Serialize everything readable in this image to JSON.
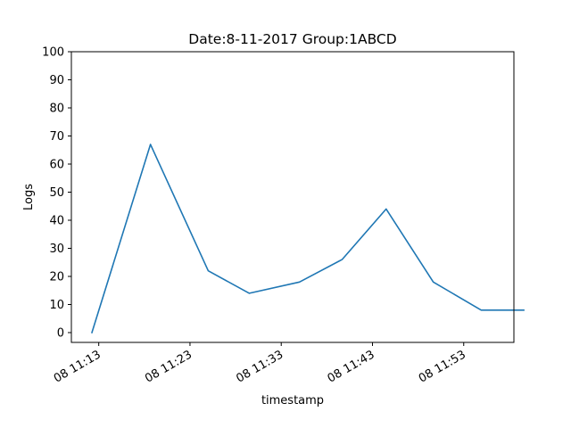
{
  "chart_data": {
    "type": "line",
    "title": "Date:8-11-2017  Group:1ABCD",
    "xlabel": "timestamp",
    "ylabel": "Logs",
    "ylim": [
      0,
      100
    ],
    "y_ticks": [
      0,
      10,
      20,
      30,
      40,
      50,
      60,
      70,
      80,
      90,
      100
    ],
    "x_axis_range": [
      "11:10:00",
      "11:58:30"
    ],
    "x_ticks": [
      {
        "time": "11:13:00",
        "label": "08 11:13"
      },
      {
        "time": "11:23:00",
        "label": "08 11:23"
      },
      {
        "time": "11:33:00",
        "label": "08 11:33"
      },
      {
        "time": "11:43:00",
        "label": "08 11:43"
      },
      {
        "time": "11:53:00",
        "label": "08 11:53"
      }
    ],
    "grid": false,
    "series": [
      {
        "color": "#1f77b4",
        "x": [
          "11:12:15",
          "11:18:40",
          "11:25:00",
          "11:29:30",
          "11:35:00",
          "11:39:40",
          "11:44:30",
          "11:49:40",
          "11:54:55",
          "11:59:35"
        ],
        "values": [
          0,
          67,
          22,
          14,
          18,
          26,
          44,
          18,
          8,
          8
        ]
      }
    ]
  }
}
